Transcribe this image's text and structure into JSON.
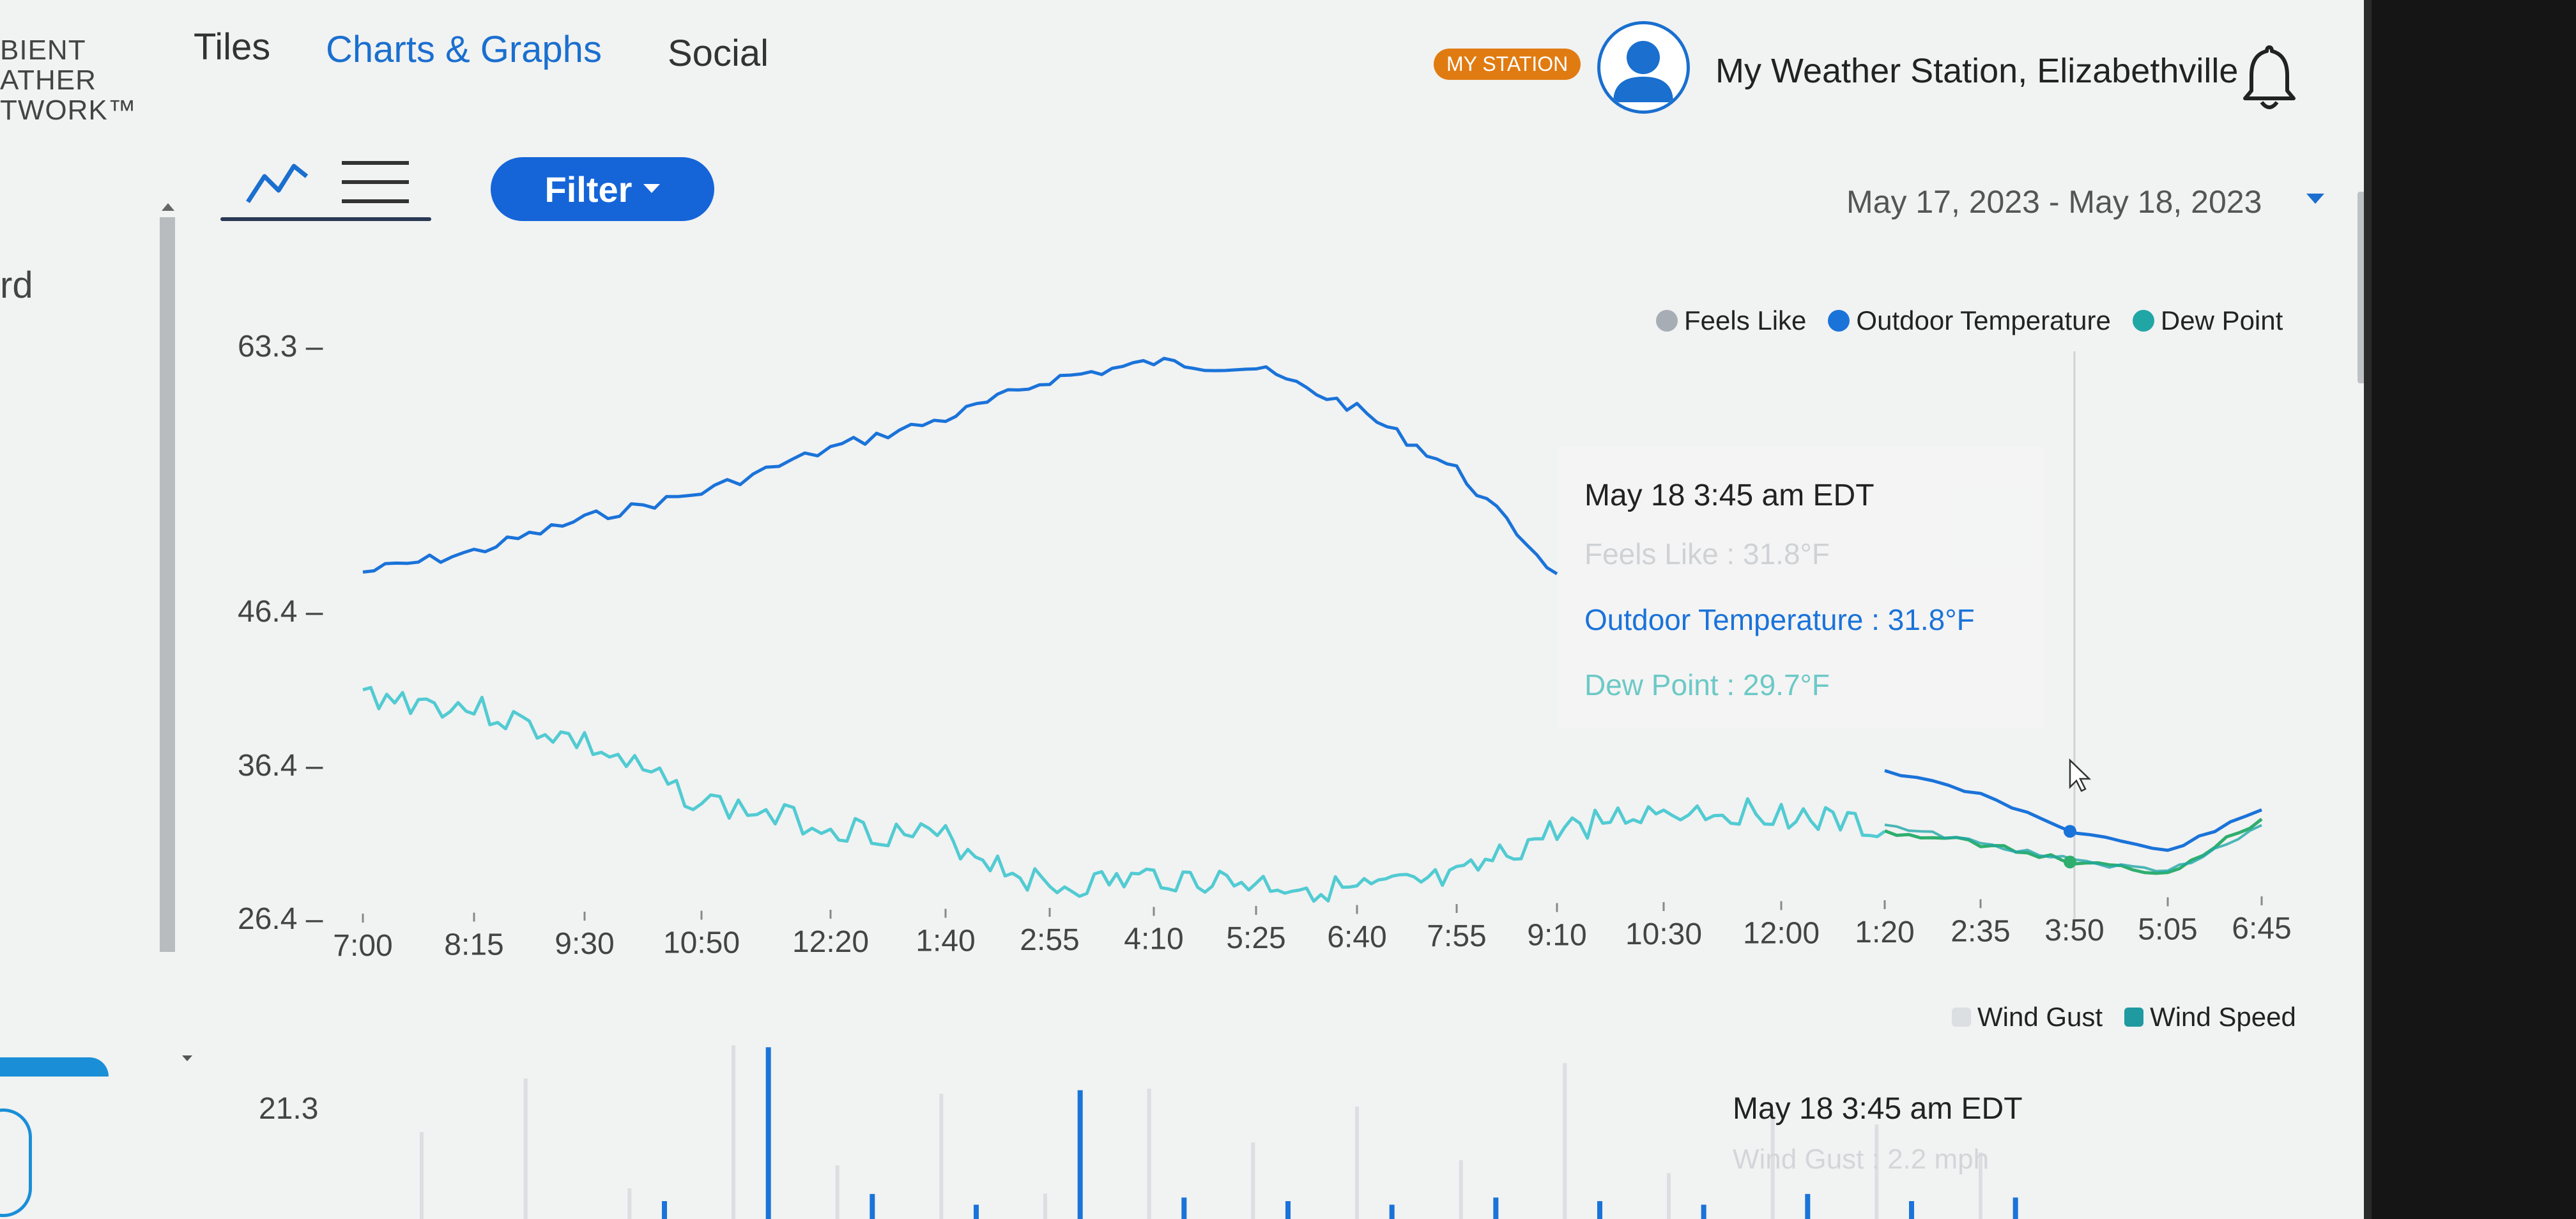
{
  "brand": {
    "lines": [
      "BIENT",
      "ATHER",
      "TWORK™"
    ]
  },
  "nav": {
    "tiles": "Tiles",
    "charts": "Charts & Graphs",
    "social": "Social"
  },
  "header": {
    "badge": "MY STATION",
    "station": "My Weather Station, Elizabethville"
  },
  "toolbar": {
    "filter": "Filter",
    "date_range": "May 17, 2023 - May 18, 2023"
  },
  "sidebar": {
    "partial_label": "rd"
  },
  "colors": {
    "feels_like": "#a7adb4",
    "outdoor_temp": "#1a73d9",
    "dew_point": "#21a6a6",
    "dew_point_line": "#52cbd2",
    "accent": "#1565d8",
    "badge": "#e07b12",
    "wind_gust": "#dcdfe2",
    "wind_speed": "#1f9aa0"
  },
  "temp_legend": [
    {
      "label": "Feels Like",
      "color": "#a7adb4"
    },
    {
      "label": "Outdoor Temperature",
      "color": "#1a73d9"
    },
    {
      "label": "Dew Point",
      "color": "#21a6a6"
    }
  ],
  "wind_legend": [
    {
      "label": "Wind Gust",
      "color": "#dcdfe2"
    },
    {
      "label": "Wind Speed",
      "color": "#1f9aa0"
    }
  ],
  "tooltip": {
    "title": "May 18 3:45 am EDT",
    "feels_like": "Feels Like : 31.8°F",
    "outdoor": "Outdoor Temperature : 31.8°F",
    "dew": "Dew Point : 29.7°F"
  },
  "tooltip2": {
    "title": "May 18 3:45 am EDT",
    "faint": "Wind Gust : 2.2 mph"
  },
  "chart_data": [
    {
      "type": "line",
      "ylim": [
        26.4,
        63.3
      ],
      "y_ticks": [
        "63.3",
        "46.4",
        "36.4",
        "26.4"
      ],
      "y_tick_values": [
        63.3,
        46.4,
        36.4,
        26.4
      ],
      "x_ticks": [
        "7:00",
        "8:15",
        "9:30",
        "10:50",
        "12:20",
        "1:40",
        "2:55",
        "4:10",
        "5:25",
        "6:40",
        "7:55",
        "9:10",
        "10:30",
        "12:00",
        "1:20",
        "2:35",
        "3:50",
        "5:05",
        "6:45"
      ],
      "series": [
        {
          "name": "Outdoor Temperature",
          "x": [
            "7:00",
            "8:15",
            "9:30",
            "10:50",
            "12:20",
            "1:40",
            "2:55",
            "4:10",
            "5:25",
            "6:40",
            "7:55",
            "9:10",
            "1:20",
            "2:35",
            "3:50",
            "5:05",
            "6:45"
          ],
          "values": [
            48.9,
            50.2,
            52.3,
            54.0,
            56.8,
            58.7,
            61.2,
            62.3,
            61.9,
            59.3,
            55.4,
            48.8,
            36.1,
            34.5,
            32.1,
            30.8,
            33.5
          ]
        },
        {
          "name": "Dew Point",
          "x": [
            "7:00",
            "8:15",
            "9:30",
            "10:50",
            "12:20",
            "1:40",
            "2:55",
            "4:10",
            "5:25",
            "6:40",
            "7:55",
            "9:10",
            "10:30",
            "12:00",
            "1:20",
            "2:35",
            "3:50",
            "5:05",
            "6:45"
          ],
          "values": [
            41.0,
            40.1,
            37.8,
            34.0,
            32.4,
            31.6,
            28.4,
            29.1,
            28.7,
            28.2,
            28.9,
            32.2,
            33.5,
            33.3,
            32.1,
            31.3,
            30.1,
            29.4,
            32.9
          ]
        },
        {
          "name": "Feels Like",
          "x": [
            "1:20",
            "2:35",
            "3:50",
            "5:05",
            "6:45"
          ],
          "values": [
            32.6,
            31.3,
            30.2,
            29.4,
            32.5
          ]
        }
      ]
    },
    {
      "type": "bar",
      "y_ticks": [
        "21.3"
      ],
      "series": [
        {
          "name": "Wind Gust",
          "values": [
            3.4,
            5.5,
            1.2,
            6.8,
            2.1,
            4.9,
            1.0,
            5.1,
            3.0,
            4.4,
            2.3,
            6.1,
            1.8,
            4.2,
            3.7,
            2.6
          ]
        },
        {
          "name": "Wind Speed",
          "values": [
            0.5,
            4.8,
            0.7,
            0.4,
            3.6,
            0.6,
            0.5,
            0.4,
            0.6,
            0.5,
            0.4,
            0.7,
            0.5,
            0.6,
            0.4,
            0.5
          ]
        }
      ]
    }
  ]
}
